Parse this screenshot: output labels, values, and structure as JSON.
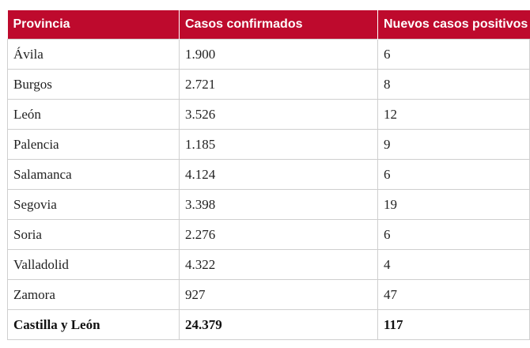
{
  "table": {
    "headers": [
      "Provincia",
      "Casos confirmados",
      "Nuevos casos positivos"
    ],
    "rows": [
      [
        "Ávila",
        "1.900",
        "6"
      ],
      [
        "Burgos",
        "2.721",
        "8"
      ],
      [
        "León",
        "3.526",
        "12"
      ],
      [
        "Palencia",
        "1.185",
        "9"
      ],
      [
        "Salamanca",
        "4.124",
        "6"
      ],
      [
        "Segovia",
        "3.398",
        "19"
      ],
      [
        "Soria",
        "2.276",
        "6"
      ],
      [
        "Valladolid",
        "4.322",
        "4"
      ],
      [
        "Zamora",
        "927",
        "47"
      ]
    ],
    "total": [
      "Castilla y León",
      "24.379",
      "117"
    ]
  },
  "colors": {
    "header_bg": "#be0a2d",
    "header_text": "#ffffff",
    "border": "#cfcfcf"
  }
}
